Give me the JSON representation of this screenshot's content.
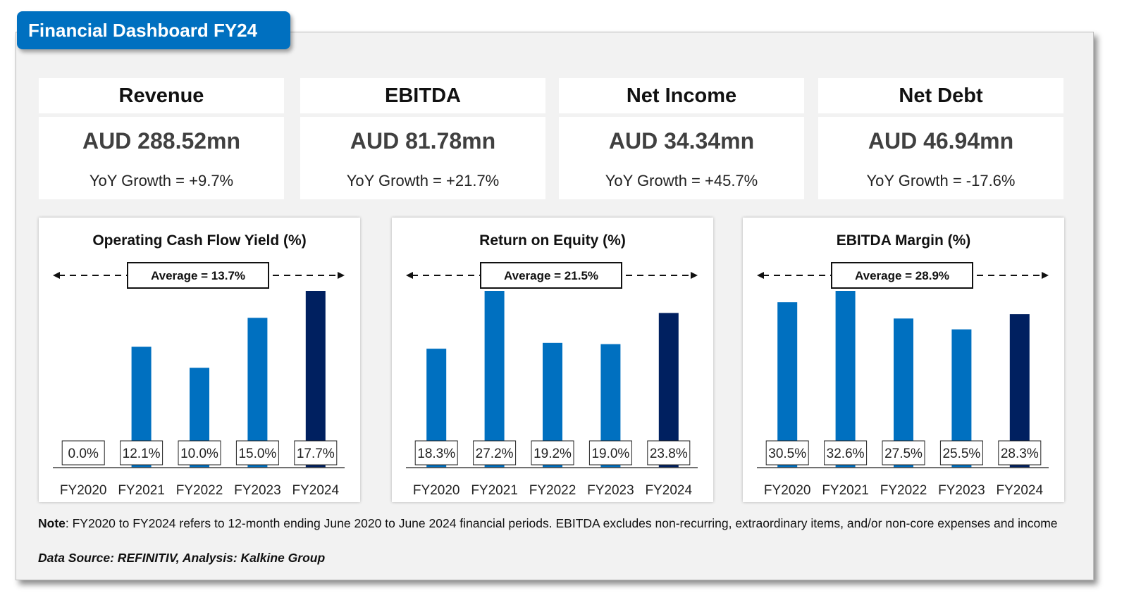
{
  "header": {
    "title": "Financial Dashboard FY24",
    "accent_color": "#0070C0"
  },
  "kpis": [
    {
      "label": "Revenue",
      "value": "AUD 288.52mn",
      "growth": "YoY Growth = +9.7%"
    },
    {
      "label": "EBITDA",
      "value": "AUD 81.78mn",
      "growth": "YoY Growth = +21.7%"
    },
    {
      "label": "Net Income",
      "value": "AUD 34.34mn",
      "growth": "YoY Growth = +45.7%"
    },
    {
      "label": "Net Debt",
      "value": "AUD 46.94mn",
      "growth": "YoY Growth = -17.6%"
    }
  ],
  "colors": {
    "bar": "#0070C0",
    "bar_highlight": "#002060"
  },
  "chart_data": [
    {
      "type": "bar",
      "title": "Operating Cash Flow Yield (%)",
      "categories": [
        "FY2020",
        "FY2021",
        "FY2022",
        "FY2023",
        "FY2024"
      ],
      "values": [
        0.0,
        12.1,
        10.0,
        15.0,
        17.7
      ],
      "data_labels": [
        "0.0%",
        "12.1%",
        "10.0%",
        "15.0%",
        "17.7%"
      ],
      "average_label": "Average = 13.7%",
      "average": 13.7,
      "highlight_category": "FY2024",
      "xlabel": "",
      "ylabel": "",
      "ylim": [
        0,
        17.7
      ],
      "grid": false,
      "legend": "none"
    },
    {
      "type": "bar",
      "title": "Return on Equity (%)",
      "categories": [
        "FY2020",
        "FY2021",
        "FY2022",
        "FY2023",
        "FY2024"
      ],
      "values": [
        18.3,
        27.2,
        19.2,
        19.0,
        23.8
      ],
      "data_labels": [
        "18.3%",
        "27.2%",
        "19.2%",
        "19.0%",
        "23.8%"
      ],
      "average_label": "Average = 21.5%",
      "average": 21.5,
      "highlight_category": "FY2024",
      "xlabel": "",
      "ylabel": "",
      "ylim": [
        0,
        27.2
      ],
      "grid": false,
      "legend": "none"
    },
    {
      "type": "bar",
      "title": "EBITDA Margin (%)",
      "categories": [
        "FY2020",
        "FY2021",
        "FY2022",
        "FY2023",
        "FY2024"
      ],
      "values": [
        30.5,
        32.6,
        27.5,
        25.5,
        28.3
      ],
      "data_labels": [
        "30.5%",
        "32.6%",
        "27.5%",
        "25.5%",
        "28.3%"
      ],
      "average_label": "Average = 28.9%",
      "average": 28.9,
      "highlight_category": "FY2024",
      "xlabel": "",
      "ylabel": "",
      "ylim": [
        0,
        32.6
      ],
      "grid": false,
      "legend": "none"
    }
  ],
  "footer": {
    "note_label": "Note",
    "note_text": ": FY2020 to FY2024 refers to 12-month ending June 2020 to June 2024 financial periods. EBITDA excludes non-recurring, extraordinary items, and/or non-core expenses and income",
    "source": "Data Source: REFINITIV, Analysis: Kalkine Group"
  }
}
